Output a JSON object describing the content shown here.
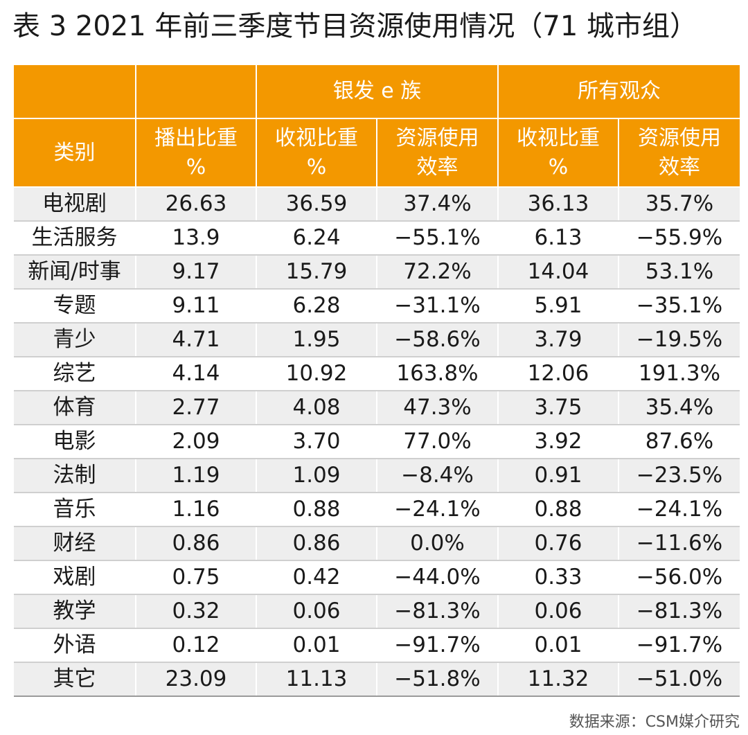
{
  "title": "表 3  2021 年前三季度节目资源使用情况（71 城市组）",
  "header": {
    "group_silver": "银发 e 族",
    "group_all": "所有观众",
    "col_category": "类别",
    "col_broadcast": [
      "播出比重",
      "%"
    ],
    "col_silver_view": [
      "收视比重",
      "%"
    ],
    "col_silver_eff": [
      "资源使用",
      "效率"
    ],
    "col_all_view": [
      "收视比重",
      "%"
    ],
    "col_all_eff": [
      "资源使用",
      "效率"
    ]
  },
  "rows": [
    [
      "电视剧",
      "26.63",
      "36.59",
      "37.4%",
      "36.13",
      "35.7%"
    ],
    [
      "生活服务",
      "13.9",
      "6.24",
      "−55.1%",
      "6.13",
      "−55.9%"
    ],
    [
      "新闻/时事",
      "9.17",
      "15.79",
      "72.2%",
      "14.04",
      "53.1%"
    ],
    [
      "专题",
      "9.11",
      "6.28",
      "−31.1%",
      "5.91",
      "−35.1%"
    ],
    [
      "青少",
      "4.71",
      "1.95",
      "−58.6%",
      "3.79",
      "−19.5%"
    ],
    [
      "综艺",
      "4.14",
      "10.92",
      "163.8%",
      "12.06",
      "191.3%"
    ],
    [
      "体育",
      "2.77",
      "4.08",
      "47.3%",
      "3.75",
      "35.4%"
    ],
    [
      "电影",
      "2.09",
      "3.70",
      "77.0%",
      "3.92",
      "87.6%"
    ],
    [
      "法制",
      "1.19",
      "1.09",
      "−8.4%",
      "0.91",
      "−23.5%"
    ],
    [
      "音乐",
      "1.16",
      "0.88",
      "−24.1%",
      "0.88",
      "−24.1%"
    ],
    [
      "财经",
      "0.86",
      "0.86",
      "0.0%",
      "0.76",
      "−11.6%"
    ],
    [
      "戏剧",
      "0.75",
      "0.42",
      "−44.0%",
      "0.33",
      "−56.0%"
    ],
    [
      "教学",
      "0.32",
      "0.06",
      "−81.3%",
      "0.06",
      "−81.3%"
    ],
    [
      "外语",
      "0.12",
      "0.01",
      "−91.7%",
      "0.01",
      "−91.7%"
    ],
    [
      "其它",
      "23.09",
      "11.13",
      "−51.8%",
      "11.32",
      "−51.0%"
    ]
  ],
  "source": "数据来源：CSM媒介研究",
  "colors": {
    "header_bg": "#f39800",
    "header_text": "#ffffff",
    "stripe": "#eeeeee"
  }
}
